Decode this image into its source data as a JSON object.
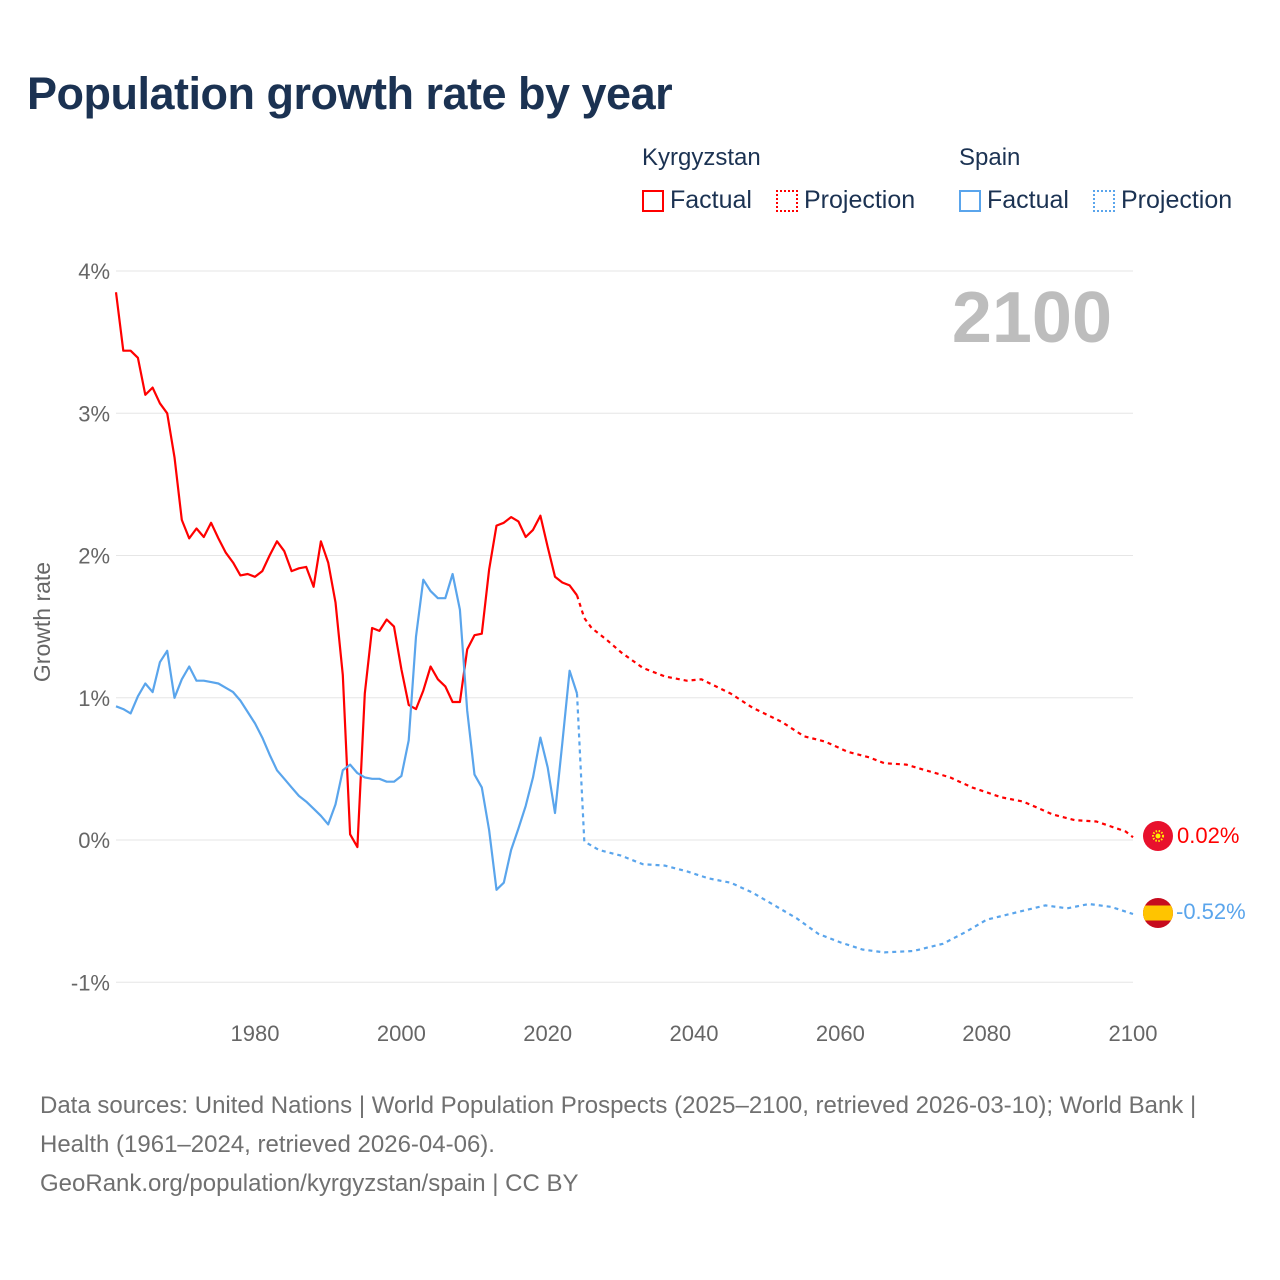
{
  "title": "Population growth rate by year",
  "legend": {
    "groups": [
      {
        "country": "Kyrgyzstan",
        "factual": "Factual",
        "projection": "Projection",
        "color": "#ff0000"
      },
      {
        "country": "Spain",
        "factual": "Factual",
        "projection": "Projection",
        "color": "#5aa5ec"
      }
    ]
  },
  "year_label": "2100",
  "end_labels": {
    "kyrgyzstan": "0.02%",
    "spain": "-0.52%"
  },
  "footer": {
    "line1": "Data sources: United Nations | World Population Prospects (2025–2100, retrieved 2026-03-10); World Bank | Health (1961–2024, retrieved 2026-04-06).",
    "line2": "GeoRank.org/population/kyrgyzstan/spain | CC BY"
  },
  "chart_data": {
    "type": "line",
    "title": "Population growth rate by year",
    "xlabel": "",
    "ylabel": "Growth rate",
    "xlim": [
      1961,
      2100
    ],
    "ylim": [
      -1.2,
      4.05
    ],
    "xticks": [
      1980,
      2000,
      2020,
      2040,
      2060,
      2080,
      2100
    ],
    "yticks": [
      -1,
      0,
      1,
      2,
      3,
      4
    ],
    "ytick_labels": [
      "-1%",
      "0%",
      "1%",
      "2%",
      "3%",
      "4%"
    ],
    "grid": true,
    "legend_position": "top-right",
    "series": [
      {
        "name": "Kyrgyzstan Factual",
        "color": "#ff0000",
        "style": "solid",
        "x": [
          1961,
          1962,
          1963,
          1964,
          1965,
          1966,
          1967,
          1968,
          1969,
          1970,
          1971,
          1972,
          1973,
          1974,
          1975,
          1976,
          1977,
          1978,
          1979,
          1980,
          1981,
          1982,
          1983,
          1984,
          1985,
          1986,
          1987,
          1988,
          1989,
          1990,
          1991,
          1992,
          1993,
          1994,
          1995,
          1996,
          1997,
          1998,
          1999,
          2000,
          2001,
          2002,
          2003,
          2004,
          2005,
          2006,
          2007,
          2008,
          2009,
          2010,
          2011,
          2012,
          2013,
          2014,
          2015,
          2016,
          2017,
          2018,
          2019,
          2020,
          2021,
          2022,
          2023,
          2024
        ],
        "y": [
          3.85,
          3.44,
          3.44,
          3.39,
          3.13,
          3.18,
          3.07,
          3.0,
          2.69,
          2.25,
          2.12,
          2.19,
          2.13,
          2.23,
          2.12,
          2.02,
          1.95,
          1.86,
          1.87,
          1.85,
          1.89,
          2.0,
          2.1,
          2.03,
          1.89,
          1.91,
          1.92,
          1.78,
          2.1,
          1.95,
          1.67,
          1.16,
          0.04,
          -0.05,
          1.03,
          1.49,
          1.47,
          1.55,
          1.5,
          1.2,
          0.95,
          0.92,
          1.05,
          1.22,
          1.13,
          1.08,
          0.97,
          0.97,
          1.34,
          1.44,
          1.45,
          1.9,
          2.21,
          2.23,
          2.27,
          2.24,
          2.13,
          2.18,
          2.28,
          2.06,
          1.85,
          1.81,
          1.79,
          1.72
        ]
      },
      {
        "name": "Kyrgyzstan Projection",
        "color": "#ff0000",
        "style": "dotted",
        "x": [
          2024,
          2025,
          2026,
          2028,
          2030,
          2033,
          2036,
          2039,
          2041,
          2045,
          2048,
          2052,
          2055,
          2058,
          2061,
          2064,
          2066,
          2069,
          2073,
          2075,
          2078,
          2082,
          2085,
          2089,
          2092,
          2095,
          2099,
          2100
        ],
        "y": [
          1.72,
          1.56,
          1.49,
          1.41,
          1.32,
          1.21,
          1.15,
          1.12,
          1.13,
          1.03,
          0.93,
          0.83,
          0.73,
          0.69,
          0.62,
          0.58,
          0.54,
          0.53,
          0.47,
          0.44,
          0.37,
          0.3,
          0.27,
          0.18,
          0.14,
          0.13,
          0.06,
          0.02
        ]
      },
      {
        "name": "Spain Factual",
        "color": "#5aa5ec",
        "style": "solid",
        "x": [
          1961,
          1962,
          1963,
          1964,
          1965,
          1966,
          1967,
          1968,
          1969,
          1970,
          1971,
          1972,
          1973,
          1974,
          1975,
          1976,
          1977,
          1978,
          1979,
          1980,
          1981,
          1982,
          1983,
          1984,
          1985,
          1986,
          1987,
          1988,
          1989,
          1990,
          1991,
          1992,
          1993,
          1994,
          1995,
          1996,
          1997,
          1998,
          1999,
          2000,
          2001,
          2002,
          2003,
          2004,
          2005,
          2006,
          2007,
          2008,
          2009,
          2010,
          2011,
          2012,
          2013,
          2014,
          2015,
          2016,
          2017,
          2018,
          2019,
          2020,
          2021,
          2022,
          2023,
          2024
        ],
        "y": [
          0.94,
          0.92,
          0.89,
          1.01,
          1.1,
          1.04,
          1.25,
          1.33,
          1.0,
          1.13,
          1.22,
          1.12,
          1.12,
          1.11,
          1.1,
          1.07,
          1.04,
          0.98,
          0.9,
          0.82,
          0.72,
          0.6,
          0.49,
          0.43,
          0.37,
          0.31,
          0.27,
          0.22,
          0.17,
          0.11,
          0.25,
          0.49,
          0.53,
          0.47,
          0.44,
          0.43,
          0.43,
          0.41,
          0.41,
          0.45,
          0.7,
          1.43,
          1.83,
          1.75,
          1.7,
          1.7,
          1.87,
          1.62,
          0.91,
          0.46,
          0.37,
          0.07,
          -0.35,
          -0.3,
          -0.07,
          0.08,
          0.24,
          0.44,
          0.72,
          0.51,
          0.19,
          0.68,
          1.19,
          1.03
        ]
      },
      {
        "name": "Spain Projection",
        "color": "#5aa5ec",
        "style": "dotted",
        "x": [
          2024,
          2025,
          2027,
          2030,
          2033,
          2036,
          2039,
          2042,
          2045,
          2048,
          2051,
          2054,
          2057,
          2060,
          2063,
          2066,
          2070,
          2074,
          2077,
          2080,
          2084,
          2088,
          2091,
          2094,
          2097,
          2100
        ],
        "y": [
          1.03,
          -0.01,
          -0.07,
          -0.11,
          -0.17,
          -0.18,
          -0.22,
          -0.27,
          -0.3,
          -0.37,
          -0.46,
          -0.55,
          -0.66,
          -0.72,
          -0.77,
          -0.79,
          -0.78,
          -0.73,
          -0.65,
          -0.56,
          -0.51,
          -0.46,
          -0.48,
          -0.45,
          -0.47,
          -0.52
        ]
      }
    ]
  }
}
